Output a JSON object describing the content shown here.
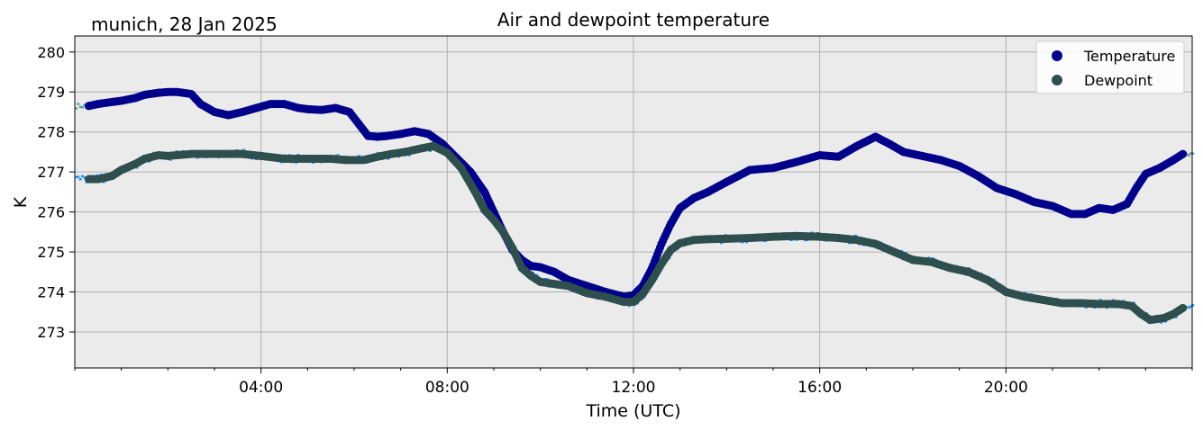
{
  "chart_data": {
    "type": "scatter",
    "title": "Air and dewpoint temperature",
    "subtitle": "munich, 28 Jan 2025",
    "xlabel": "Time (UTC)",
    "ylabel": "K",
    "xlim": [
      0,
      24
    ],
    "ylim": [
      272.1,
      280.4
    ],
    "x_ticks": [
      4,
      8,
      12,
      16,
      20
    ],
    "x_tick_labels": [
      "04:00",
      "08:00",
      "12:00",
      "16:00",
      "20:00"
    ],
    "y_ticks": [
      273,
      274,
      275,
      276,
      277,
      278,
      279,
      280
    ],
    "y_tick_labels": [
      "273",
      "274",
      "275",
      "276",
      "277",
      "278",
      "279",
      "280"
    ],
    "grid": true,
    "legend_position": "top-right",
    "series": [
      {
        "name": "Temperature",
        "color": "#00008b",
        "raw_color": "#5f9ea0",
        "x": [
          0.3,
          0.5,
          0.8,
          1.0,
          1.3,
          1.5,
          1.8,
          2.0,
          2.2,
          2.5,
          2.7,
          3.0,
          3.3,
          3.6,
          3.9,
          4.2,
          4.5,
          4.8,
          5.0,
          5.3,
          5.6,
          5.9,
          6.1,
          6.3,
          6.5,
          6.7,
          7.0,
          7.3,
          7.6,
          7.9,
          8.2,
          8.5,
          8.8,
          9.0,
          9.2,
          9.4,
          9.6,
          9.8,
          10.0,
          10.3,
          10.6,
          11.0,
          11.4,
          11.8,
          12.0,
          12.2,
          12.4,
          12.6,
          12.8,
          13.0,
          13.3,
          13.6,
          14.0,
          14.5,
          15.0,
          15.5,
          16.0,
          16.4,
          16.8,
          17.2,
          17.5,
          17.8,
          18.2,
          18.6,
          19.0,
          19.4,
          19.8,
          20.2,
          20.6,
          21.0,
          21.4,
          21.7,
          22.0,
          22.3,
          22.6,
          22.8,
          23.0,
          23.3,
          23.6,
          23.8
        ],
        "y": [
          278.65,
          278.7,
          278.75,
          278.78,
          278.85,
          278.93,
          278.98,
          279.0,
          279.0,
          278.95,
          278.7,
          278.5,
          278.42,
          278.5,
          278.6,
          278.7,
          278.7,
          278.6,
          278.57,
          278.55,
          278.6,
          278.5,
          278.2,
          277.9,
          277.88,
          277.9,
          277.95,
          278.02,
          277.95,
          277.7,
          277.35,
          277.0,
          276.5,
          276.0,
          275.5,
          275.05,
          274.8,
          274.65,
          274.62,
          274.5,
          274.3,
          274.15,
          274.0,
          273.88,
          273.92,
          274.15,
          274.6,
          275.2,
          275.7,
          276.1,
          276.35,
          276.5,
          276.75,
          277.05,
          277.1,
          277.25,
          277.42,
          277.38,
          277.65,
          277.88,
          277.7,
          277.5,
          277.4,
          277.3,
          277.15,
          276.9,
          276.6,
          276.45,
          276.25,
          276.15,
          275.95,
          275.95,
          276.1,
          276.05,
          276.2,
          276.6,
          276.95,
          277.1,
          277.3,
          277.45
        ]
      },
      {
        "name": "Dewpoint",
        "color": "#2f4f4f",
        "raw_color": "#1e90ff",
        "x": [
          0.3,
          0.5,
          0.8,
          1.0,
          1.3,
          1.5,
          1.8,
          2.0,
          2.2,
          2.5,
          2.8,
          3.2,
          3.6,
          4.0,
          4.5,
          5.0,
          5.5,
          5.8,
          6.2,
          6.5,
          6.8,
          7.1,
          7.4,
          7.7,
          8.0,
          8.3,
          8.6,
          8.8,
          9.0,
          9.2,
          9.4,
          9.6,
          9.8,
          10.0,
          10.3,
          10.6,
          11.0,
          11.4,
          11.8,
          12.0,
          12.2,
          12.4,
          12.6,
          12.8,
          13.0,
          13.3,
          13.6,
          14.0,
          14.5,
          15.0,
          15.5,
          16.0,
          16.4,
          16.8,
          17.2,
          17.6,
          18.0,
          18.4,
          18.8,
          19.2,
          19.6,
          20.0,
          20.4,
          20.8,
          21.2,
          21.6,
          22.0,
          22.4,
          22.7,
          22.9,
          23.1,
          23.4,
          23.6,
          23.8
        ],
        "y": [
          276.82,
          276.82,
          276.9,
          277.05,
          277.2,
          277.33,
          277.42,
          277.4,
          277.42,
          277.45,
          277.45,
          277.45,
          277.45,
          277.4,
          277.33,
          277.33,
          277.33,
          277.3,
          277.3,
          277.38,
          277.45,
          277.5,
          277.58,
          277.65,
          277.48,
          277.1,
          276.5,
          276.05,
          275.8,
          275.5,
          275.1,
          274.6,
          274.4,
          274.25,
          274.2,
          274.15,
          273.97,
          273.88,
          273.75,
          273.75,
          273.95,
          274.3,
          274.7,
          275.05,
          275.22,
          275.3,
          275.32,
          275.33,
          275.35,
          275.38,
          275.4,
          275.38,
          275.35,
          275.3,
          275.2,
          275.0,
          274.8,
          274.75,
          274.6,
          274.5,
          274.3,
          274.0,
          273.88,
          273.8,
          273.72,
          273.72,
          273.7,
          273.7,
          273.65,
          273.45,
          273.3,
          273.35,
          273.45,
          273.6
        ]
      }
    ]
  }
}
